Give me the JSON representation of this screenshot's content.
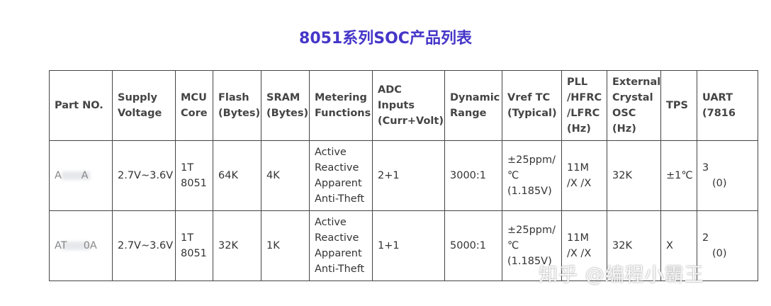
{
  "title": "8051系列SOC产品列表",
  "headers": [
    "Part NO.",
    "Supply Voltage",
    "MCU Core",
    "Flash (Bytes)",
    "SRAM (Bytes)",
    "Metering Functions",
    "ADC Inputs (Curr+Volt)",
    "Dynamic Range",
    "Vref TC (Typical)",
    "PLL /HFRC /LFRC (Hz)",
    "External Crystal OSC (Hz)",
    "TPS",
    "UART (7816"
  ],
  "rows": [
    {
      "part": "A      A",
      "voltage": "2.7V~3.6V",
      "core": "1T 8051",
      "flash": "64K",
      "sram": "4K",
      "metering": "Active Reactive Apparent Anti-Theft",
      "adc": "2+1",
      "range": "3000:1",
      "vref": "±25ppm/ ℃ (1.185V)",
      "pll": "11M /X /X",
      "osc": "32K",
      "tps": "±1℃",
      "uart": "3",
      "uart_sub": "(0)"
    },
    {
      "part": "AT     0A",
      "voltage": "2.7V~3.6V",
      "core": "1T 8051",
      "flash": "32K",
      "sram": "1K",
      "metering": "Active Reactive Apparent Anti-Theft",
      "adc": "1+1",
      "range": "5000:1",
      "vref": "±25ppm/ ℃ (1.185V)",
      "pll": "11M /X /X",
      "osc": "32K",
      "tps": "X",
      "uart": "2",
      "uart_sub": "(0)"
    }
  ],
  "watermark": "知乎 @编程小霸王"
}
